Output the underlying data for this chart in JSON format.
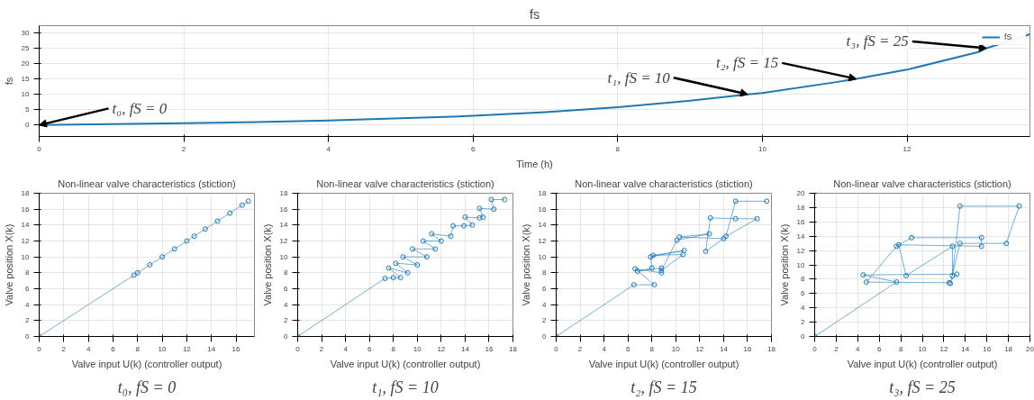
{
  "chart_data": [
    {
      "type": "line",
      "title": "fs",
      "xlabel": "Time (h)",
      "ylabel": "fs",
      "xlim": [
        0,
        13.7
      ],
      "ylim": [
        -3.7,
        32.3
      ],
      "xticks": [
        0,
        2,
        4,
        6,
        8,
        10,
        12
      ],
      "yticks": [
        0,
        5,
        10,
        15,
        20,
        25,
        30
      ],
      "grid": true,
      "legend": "top right",
      "marker": "none",
      "line_style": "solid",
      "series": [
        {
          "name": "fS",
          "color": "#1f77b4",
          "x": [
            0,
            1,
            2,
            3,
            4,
            5,
            6,
            7,
            8,
            9,
            9.8,
            10,
            11,
            11.3,
            12,
            13,
            13.1,
            13.7
          ],
          "values": [
            0,
            0.3,
            0.6,
            1,
            1.5,
            2.2,
            3,
            4.2,
            5.8,
            7.9,
            10,
            10.4,
            13.9,
            15,
            18,
            23.8,
            25,
            29.5
          ]
        }
      ],
      "annotations": [
        {
          "text": "t₀, fS = 0",
          "x": 0,
          "y": 0
        },
        {
          "text": "t₁, fS = 10",
          "x": 9.8,
          "y": 10
        },
        {
          "text": "t₂, fS = 15",
          "x": 11.3,
          "y": 15
        },
        {
          "text": "t₃, fS = 25",
          "x": 13.1,
          "y": 25
        }
      ]
    },
    {
      "type": "line",
      "title": "Non-linear valve characteristics (stiction)",
      "xlabel": "Valve input U(k) (controller output)",
      "ylabel": "Valve position X(k)",
      "xlim": [
        0,
        17.5
      ],
      "ylim": [
        0,
        18
      ],
      "xticks": [
        0,
        2,
        4,
        6,
        8,
        10,
        12,
        14,
        16
      ],
      "yticks": [
        0,
        2,
        4,
        6,
        8,
        10,
        12,
        14,
        16,
        18
      ],
      "grid": true,
      "marker": "circle",
      "series": [
        {
          "color": "#1f77b4",
          "x": [
            0,
            7.7,
            8,
            9,
            10,
            11,
            12,
            12.6,
            13.5,
            14.5,
            15.5,
            16.5,
            17
          ],
          "values": [
            0,
            7.7,
            8,
            9,
            10,
            11,
            12,
            12.6,
            13.5,
            14.5,
            15.5,
            16.5,
            17
          ]
        }
      ],
      "annotations": [
        "t₀, fS = 0"
      ]
    },
    {
      "type": "line",
      "title": "Non-linear valve characteristics (stiction)",
      "xlabel": "Valve input U(k) (controller output)",
      "ylabel": "Valve position X(k)",
      "xlim": [
        0,
        18
      ],
      "ylim": [
        0,
        18
      ],
      "xticks": [
        0,
        2,
        4,
        6,
        8,
        10,
        12,
        14,
        16,
        18
      ],
      "yticks": [
        0,
        2,
        4,
        6,
        8,
        10,
        12,
        14,
        16,
        18
      ],
      "grid": true,
      "marker": "circle",
      "series": [
        {
          "color": "#1f77b4",
          "x": [
            0,
            7.3,
            8,
            8.6,
            7.6,
            9.2,
            8.2,
            10,
            8.8,
            10.8,
            9.6,
            11.5,
            10.5,
            12,
            11.2,
            12.8,
            13,
            13.9,
            14.6,
            14,
            15.2,
            15.5,
            15.2,
            16.4,
            16.2,
            17.3
          ],
          "values": [
            0,
            7.3,
            7.4,
            7.4,
            8.6,
            8,
            9.2,
            9,
            10,
            10,
            11,
            11,
            12,
            12,
            12.9,
            12.6,
            13.9,
            13.9,
            14,
            15,
            14.9,
            15,
            16.1,
            16,
            17.2,
            17.2
          ]
        }
      ],
      "annotations": [
        "t₁, fS = 10"
      ]
    },
    {
      "type": "line",
      "title": "Non-linear valve characteristics (stiction)",
      "xlabel": "Valve input U(k) (controller output)",
      "ylabel": "Valve position X(k)",
      "xlim": [
        0,
        18
      ],
      "ylim": [
        0,
        18
      ],
      "xticks": [
        0,
        2,
        4,
        6,
        8,
        10,
        12,
        14,
        16,
        18
      ],
      "yticks": [
        0,
        2,
        4,
        6,
        8,
        10,
        12,
        14,
        16,
        18
      ],
      "grid": true,
      "marker": "circle",
      "series": [
        {
          "color": "#1f77b4",
          "x": [
            0,
            6.5,
            8.2,
            6.6,
            8.8,
            8.8,
            6.8,
            8,
            7.9,
            10.7,
            8.1,
            10.6,
            8.8,
            10.1,
            12.8,
            10.3,
            14,
            12.5,
            12.9,
            15,
            16.8,
            14.2,
            15,
            17.6
          ],
          "values": [
            0,
            6.5,
            6.5,
            8.5,
            8,
            8.6,
            8.2,
            8.6,
            10,
            10.8,
            10.2,
            10.3,
            8.3,
            12.1,
            12.9,
            12.5,
            12.3,
            10.7,
            14.9,
            14.8,
            14.8,
            12.6,
            17,
            17
          ]
        }
      ],
      "annotations": [
        "t₂, fS = 15"
      ]
    },
    {
      "type": "line",
      "title": "Non-linear valve characteristics (stiction)",
      "xlabel": "Valve input U(k) (controller output)",
      "ylabel": "Valve position X(k)",
      "xlim": [
        0,
        20
      ],
      "ylim": [
        0,
        20
      ],
      "xticks": [
        0,
        2,
        4,
        6,
        8,
        10,
        12,
        14,
        16,
        18,
        20
      ],
      "yticks": [
        0,
        2,
        4,
        6,
        8,
        10,
        12,
        14,
        16,
        18,
        20
      ],
      "grid": true,
      "marker": "circle",
      "series": [
        {
          "color": "#1f77b4",
          "x": [
            0,
            7.6,
            4.5,
            13.2,
            12.5,
            4.8,
            7.6,
            9,
            15.5,
            15.5,
            7.8,
            8.5,
            12.8,
            12.8,
            13.5,
            19,
            17.8,
            13.5,
            12.6
          ],
          "values": [
            0,
            7.6,
            8.6,
            8.7,
            7.5,
            7.6,
            12.6,
            13.8,
            13.8,
            12.6,
            12.8,
            8.5,
            12.6,
            8.5,
            18.2,
            18.2,
            13,
            13,
            7.4
          ]
        }
      ],
      "annotations": [
        "t₃, fS = 25"
      ]
    }
  ]
}
